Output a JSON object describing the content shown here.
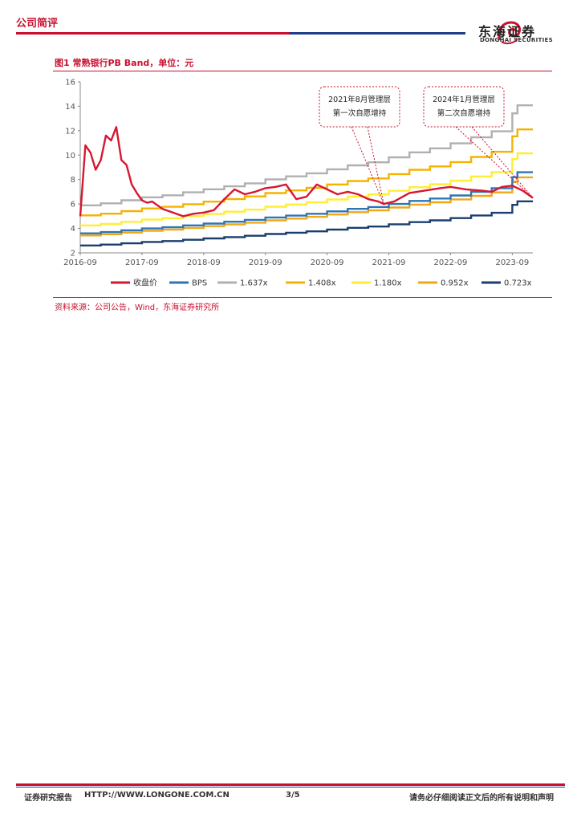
{
  "header": {
    "section": "公司简评",
    "logo_cn": "东海证券",
    "logo_en": "DONGHAI SECURITIES"
  },
  "figure": {
    "title": "图1  常熟银行PB Band，单位：元",
    "source": "资料来源：公司公告，Wind，东海证券研究所"
  },
  "footer": {
    "left": "证券研究报告",
    "url": "HTTP://WWW.LONGONE.COM.CN",
    "page": "3/5",
    "right": "请务必仔细阅读正文后的所有说明和声明"
  },
  "colors": {
    "brand_red": "#c8102e",
    "brand_blue": "#1f3c88"
  },
  "chart_data": {
    "type": "line",
    "title": "图1  常熟银行PB Band，单位：元",
    "ylim": [
      2,
      16
    ],
    "yticks": [
      2,
      4,
      6,
      8,
      10,
      12,
      14,
      16
    ],
    "xlim": [
      "2016-09",
      "2024-01"
    ],
    "xticks": [
      "2016-09",
      "2017-09",
      "2018-09",
      "2019-09",
      "2020-09",
      "2021-09",
      "2022-09",
      "2023-09"
    ],
    "grid": false,
    "legend_position": "bottom",
    "annotations": [
      {
        "text_line1": "2021年8月管理层",
        "text_line2": "第一次自愿增持",
        "target": [
          "2021-08",
          6.0
        ]
      },
      {
        "text_line1": "2024年1月管理层",
        "text_line2": "第二次自愿增持",
        "target": [
          "2024-01",
          6.5
        ]
      }
    ],
    "bps_steps": [
      [
        "2016-09",
        3.6
      ],
      [
        "2017-01",
        3.7
      ],
      [
        "2017-05",
        3.85
      ],
      [
        "2017-09",
        4.0
      ],
      [
        "2018-01",
        4.1
      ],
      [
        "2018-05",
        4.25
      ],
      [
        "2018-09",
        4.4
      ],
      [
        "2019-01",
        4.55
      ],
      [
        "2019-05",
        4.7
      ],
      [
        "2019-09",
        4.9
      ],
      [
        "2020-01",
        5.05
      ],
      [
        "2020-05",
        5.2
      ],
      [
        "2020-09",
        5.4
      ],
      [
        "2021-01",
        5.6
      ],
      [
        "2021-05",
        5.75
      ],
      [
        "2021-09",
        6.0
      ],
      [
        "2022-01",
        6.25
      ],
      [
        "2022-05",
        6.45
      ],
      [
        "2022-09",
        6.7
      ],
      [
        "2023-01",
        7.0
      ],
      [
        "2023-05",
        7.3
      ],
      [
        "2023-09",
        8.2
      ],
      [
        "2023-10",
        8.6
      ],
      [
        "2024-01",
        8.6
      ]
    ],
    "series": [
      {
        "name": "收盘价",
        "color": "#d7172f",
        "kind": "price"
      },
      {
        "name": "BPS",
        "color": "#2e75b6",
        "kind": "band",
        "multiple": 1.0
      },
      {
        "name": "1.637x",
        "color": "#b0b0b0",
        "kind": "band",
        "multiple": 1.637
      },
      {
        "name": "1.408x",
        "color": "#f5b300",
        "kind": "band",
        "multiple": 1.408
      },
      {
        "name": "1.180x",
        "color": "#ffee33",
        "kind": "band",
        "multiple": 1.18
      },
      {
        "name": "0.952x",
        "color": "#f0a818",
        "kind": "band",
        "multiple": 0.952
      },
      {
        "name": "0.723x",
        "color": "#1a3f6e",
        "kind": "band",
        "multiple": 0.723
      }
    ],
    "price_points": [
      [
        "2016-09",
        5.0
      ],
      [
        "2016-10",
        10.8
      ],
      [
        "2016-11",
        10.2
      ],
      [
        "2016-12",
        8.8
      ],
      [
        "2017-01",
        9.6
      ],
      [
        "2017-02",
        11.6
      ],
      [
        "2017-03",
        11.2
      ],
      [
        "2017-04",
        12.3
      ],
      [
        "2017-05",
        9.6
      ],
      [
        "2017-06",
        9.2
      ],
      [
        "2017-07",
        7.6
      ],
      [
        "2017-08",
        6.9
      ],
      [
        "2017-09",
        6.3
      ],
      [
        "2017-10",
        6.1
      ],
      [
        "2017-11",
        6.2
      ],
      [
        "2017-12",
        5.9
      ],
      [
        "2018-01",
        5.6
      ],
      [
        "2018-03",
        5.3
      ],
      [
        "2018-05",
        5.0
      ],
      [
        "2018-07",
        5.2
      ],
      [
        "2018-09",
        5.3
      ],
      [
        "2018-11",
        5.5
      ],
      [
        "2019-01",
        6.4
      ],
      [
        "2019-03",
        7.2
      ],
      [
        "2019-05",
        6.8
      ],
      [
        "2019-07",
        7.0
      ],
      [
        "2019-09",
        7.3
      ],
      [
        "2019-11",
        7.4
      ],
      [
        "2020-01",
        7.6
      ],
      [
        "2020-03",
        6.4
      ],
      [
        "2020-05",
        6.6
      ],
      [
        "2020-07",
        7.6
      ],
      [
        "2020-09",
        7.2
      ],
      [
        "2020-11",
        6.8
      ],
      [
        "2021-01",
        7.0
      ],
      [
        "2021-03",
        6.8
      ],
      [
        "2021-05",
        6.4
      ],
      [
        "2021-07",
        6.2
      ],
      [
        "2021-08",
        6.0
      ],
      [
        "2021-10",
        6.2
      ],
      [
        "2022-01",
        6.9
      ],
      [
        "2022-04",
        7.1
      ],
      [
        "2022-07",
        7.3
      ],
      [
        "2022-09",
        7.4
      ],
      [
        "2022-12",
        7.2
      ],
      [
        "2023-03",
        7.1
      ],
      [
        "2023-05",
        7.0
      ],
      [
        "2023-07",
        7.4
      ],
      [
        "2023-09",
        7.5
      ],
      [
        "2023-11",
        7.1
      ],
      [
        "2024-01",
        6.5
      ]
    ]
  }
}
